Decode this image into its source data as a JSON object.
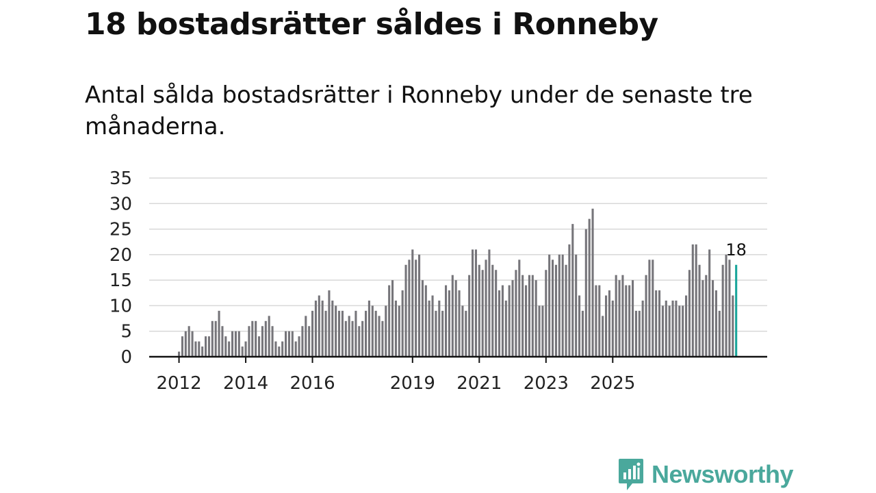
{
  "header": {
    "title": "18 bostadsrätter såldes i Ronneby",
    "subtitle": "Antal sålda bostadsrätter i Ronneby under de senaste tre månaderna."
  },
  "brand": {
    "name": "Newsworthy",
    "icon": "newsworthy-logo-icon",
    "color": "#4aa89c"
  },
  "colors": {
    "bar": "#76757a",
    "highlight": "#1aa59b",
    "grid": "#d8d8d8",
    "axis": "#111111"
  },
  "chart_data": {
    "type": "bar",
    "title": "18 bostadsrätter såldes i Ronneby",
    "xlabel": "",
    "ylabel": "",
    "ylim": [
      0,
      35
    ],
    "yticks": [
      0,
      5,
      10,
      15,
      20,
      25,
      30,
      35
    ],
    "xticks": [
      {
        "label": "2012",
        "index": 0
      },
      {
        "label": "2014",
        "index": 20
      },
      {
        "label": "2016",
        "index": 40
      },
      {
        "label": "2019",
        "index": 70
      },
      {
        "label": "2021",
        "index": 90
      },
      {
        "label": "2023",
        "index": 110
      },
      {
        "label": "2025",
        "index": 130
      }
    ],
    "values": [
      1,
      4,
      5,
      6,
      5,
      3,
      3,
      2,
      4,
      4,
      7,
      7,
      9,
      6,
      4,
      3,
      5,
      5,
      5,
      2,
      3,
      6,
      7,
      7,
      4,
      6,
      7,
      8,
      6,
      3,
      2,
      3,
      5,
      5,
      5,
      3,
      4,
      6,
      8,
      6,
      9,
      11,
      12,
      11,
      9,
      13,
      11,
      10,
      9,
      9,
      7,
      8,
      7,
      9,
      6,
      7,
      9,
      11,
      10,
      9,
      8,
      7,
      10,
      14,
      15,
      11,
      10,
      13,
      18,
      19,
      21,
      19,
      20,
      15,
      14,
      11,
      12,
      9,
      11,
      9,
      14,
      13,
      16,
      15,
      13,
      10,
      9,
      16,
      21,
      21,
      18,
      17,
      19,
      21,
      18,
      17,
      13,
      14,
      11,
      14,
      15,
      17,
      19,
      16,
      14,
      16,
      16,
      15,
      10,
      10,
      17,
      20,
      19,
      18,
      20,
      20,
      18,
      22,
      26,
      20,
      12,
      9,
      25,
      27,
      29,
      14,
      14,
      8,
      12,
      13,
      11,
      16,
      15,
      16,
      14,
      14,
      15,
      9,
      9,
      11,
      16,
      19,
      19,
      13,
      13,
      10,
      11,
      10,
      11,
      11,
      10,
      10,
      12,
      17,
      22,
      22,
      18,
      15,
      16,
      21,
      15,
      13,
      9,
      18,
      20,
      19,
      12,
      18
    ],
    "highlight_index": 167,
    "highlight_label": "18"
  }
}
